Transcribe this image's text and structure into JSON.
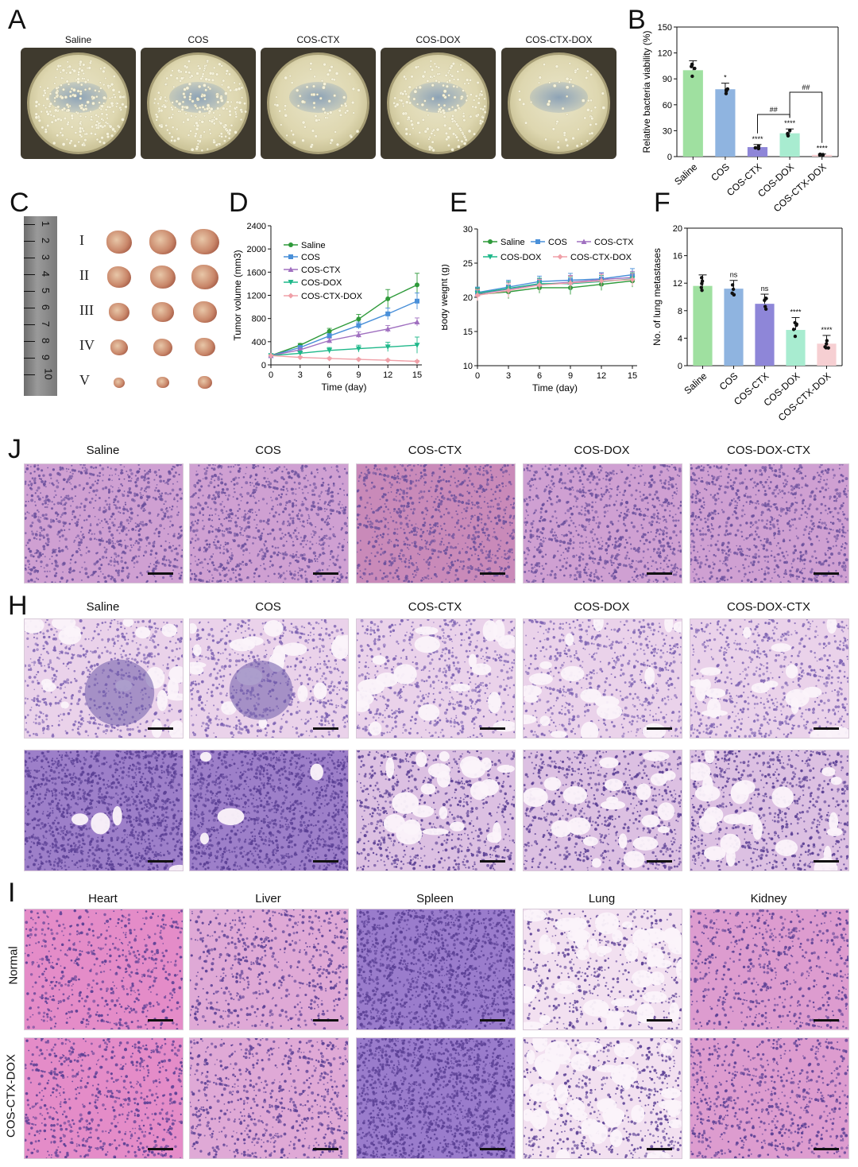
{
  "panels": {
    "A": {
      "letter": "A",
      "plates": [
        "Saline",
        "COS",
        "COS-CTX",
        "COS-DOX",
        "COS-CTX-DOX"
      ]
    },
    "B": {
      "letter": "B"
    },
    "C": {
      "letter": "C",
      "groups": [
        "I",
        "II",
        "III",
        "IV",
        "V"
      ],
      "ruler_marks": [
        "1",
        "2",
        "3",
        "4",
        "5",
        "6",
        "7",
        "8",
        "9",
        "10"
      ]
    },
    "D": {
      "letter": "D"
    },
    "E": {
      "letter": "E"
    },
    "F": {
      "letter": "F"
    },
    "J": {
      "letter": "J",
      "titles": [
        "Saline",
        "COS",
        "COS-CTX",
        "COS-DOX",
        "COS-DOX-CTX"
      ]
    },
    "H": {
      "letter": "H",
      "titles": [
        "Saline",
        "COS",
        "COS-CTX",
        "COS-DOX",
        "COS-DOX-CTX"
      ]
    },
    "I": {
      "letter": "I",
      "titles": [
        "Heart",
        "Liver",
        "Spleen",
        "Lung",
        "Kidney"
      ],
      "rows": [
        "Normal",
        "COS-CTX-DOX"
      ]
    }
  },
  "chart_data": [
    {
      "id": "B",
      "type": "bar",
      "ylabel": "Relative bacteria viability (%)",
      "categories": [
        "Saline",
        "COS",
        "COS-CTX",
        "COS-DOX",
        "COS-CTX-DOX"
      ],
      "values": [
        100,
        78,
        11,
        27,
        2
      ],
      "errors": [
        11,
        7,
        3,
        5,
        1
      ],
      "ylim": [
        0,
        150
      ],
      "yticks": [
        0,
        30,
        60,
        90,
        120,
        150
      ],
      "significance": [
        "",
        "*",
        "****",
        "****",
        "****"
      ],
      "comparisons": [
        {
          "label": "##",
          "from": "COS-CTX",
          "to": "COS-DOX"
        },
        {
          "label": "##",
          "from": "COS-DOX",
          "to": "COS-CTX-DOX"
        }
      ],
      "colors": [
        "#9fe0a0",
        "#8fb4e0",
        "#8e86d8",
        "#a8ecd0",
        "#f6cfd2"
      ]
    },
    {
      "id": "D",
      "type": "line",
      "xlabel": "Time (day)",
      "ylabel": "Tumor volume (mm3)",
      "x": [
        0,
        3,
        6,
        9,
        12,
        15
      ],
      "xlim": [
        0,
        15
      ],
      "ylim": [
        0,
        2400
      ],
      "yticks": [
        0,
        400,
        800,
        1200,
        1600,
        2000,
        2400
      ],
      "series": [
        {
          "name": "Saline",
          "values": [
            160,
            340,
            580,
            790,
            1140,
            1380
          ],
          "errors": [
            20,
            30,
            50,
            80,
            160,
            200
          ],
          "color": "#2e9a3a",
          "marker": "circle"
        },
        {
          "name": "COS",
          "values": [
            160,
            300,
            500,
            680,
            880,
            1100
          ],
          "errors": [
            20,
            30,
            40,
            60,
            100,
            140
          ],
          "color": "#4a90d9",
          "marker": "square"
        },
        {
          "name": "COS-CTX",
          "values": [
            160,
            260,
            420,
            520,
            620,
            740
          ],
          "errors": [
            20,
            30,
            40,
            50,
            60,
            70
          ],
          "color": "#a070c0",
          "marker": "triangle"
        },
        {
          "name": "COS-DOX",
          "values": [
            160,
            200,
            250,
            280,
            310,
            340
          ],
          "errors": [
            20,
            40,
            50,
            60,
            80,
            140
          ],
          "color": "#1fb88a",
          "marker": "tri-down"
        },
        {
          "name": "COS-CTX-DOX",
          "values": [
            160,
            130,
            110,
            95,
            80,
            60
          ],
          "errors": [
            10,
            15,
            15,
            15,
            15,
            15
          ],
          "color": "#f0a0a8",
          "marker": "diamond"
        }
      ]
    },
    {
      "id": "E",
      "type": "line",
      "xlabel": "Time (day)",
      "ylabel": "Body weight (g)",
      "x": [
        0,
        3,
        6,
        9,
        12,
        15
      ],
      "xlim": [
        0,
        15
      ],
      "ylim": [
        10,
        30
      ],
      "yticks": [
        10,
        15,
        20,
        25,
        30
      ],
      "series": [
        {
          "name": "Saline",
          "values": [
            20.4,
            20.8,
            21.4,
            21.4,
            21.9,
            22.4
          ],
          "errors": [
            0.8,
            1.0,
            0.8,
            1.0,
            0.9,
            0.9
          ],
          "color": "#2e9a3a",
          "marker": "circle"
        },
        {
          "name": "COS",
          "values": [
            20.7,
            21.5,
            22.3,
            22.5,
            22.7,
            23.3
          ],
          "errors": [
            0.8,
            1.0,
            0.8,
            1.0,
            0.9,
            0.9
          ],
          "color": "#4a90d9",
          "marker": "square"
        },
        {
          "name": "COS-CTX",
          "values": [
            20.5,
            21.2,
            21.9,
            22.2,
            22.6,
            22.9
          ],
          "errors": [
            0.8,
            1.0,
            0.8,
            1.0,
            0.9,
            0.9
          ],
          "color": "#a070c0",
          "marker": "triangle"
        },
        {
          "name": "COS-DOX",
          "values": [
            20.6,
            21.3,
            22.0,
            22.0,
            22.3,
            22.7
          ],
          "errors": [
            0.8,
            1.0,
            0.8,
            1.0,
            0.9,
            0.9
          ],
          "color": "#1fb88a",
          "marker": "tri-down"
        },
        {
          "name": "COS-CTX-DOX",
          "values": [
            20.3,
            21.0,
            21.8,
            22.1,
            22.4,
            22.6
          ],
          "errors": [
            0.8,
            1.0,
            0.8,
            1.0,
            0.9,
            0.9
          ],
          "color": "#f0a0a8",
          "marker": "diamond"
        }
      ]
    },
    {
      "id": "F",
      "type": "bar",
      "ylabel": "No. of lung metastases",
      "categories": [
        "Saline",
        "COS",
        "COS-CTX",
        "COS-DOX",
        "COS-CTX-DOX"
      ],
      "values": [
        11.6,
        11.2,
        9.0,
        5.2,
        3.2
      ],
      "errors": [
        1.6,
        1.2,
        1.4,
        1.8,
        1.2
      ],
      "ylim": [
        0,
        20
      ],
      "yticks": [
        0,
        4,
        8,
        12,
        16,
        20
      ],
      "significance": [
        "",
        "ns",
        "ns",
        "****",
        "****"
      ],
      "colors": [
        "#9fe0a0",
        "#8fb4e0",
        "#8e86d8",
        "#a8ecd0",
        "#f6cfd2"
      ]
    }
  ],
  "colors": {
    "he_pink": "#d98fc8",
    "he_purple": "#8f6fc0",
    "he_light": "#f4dcef"
  }
}
